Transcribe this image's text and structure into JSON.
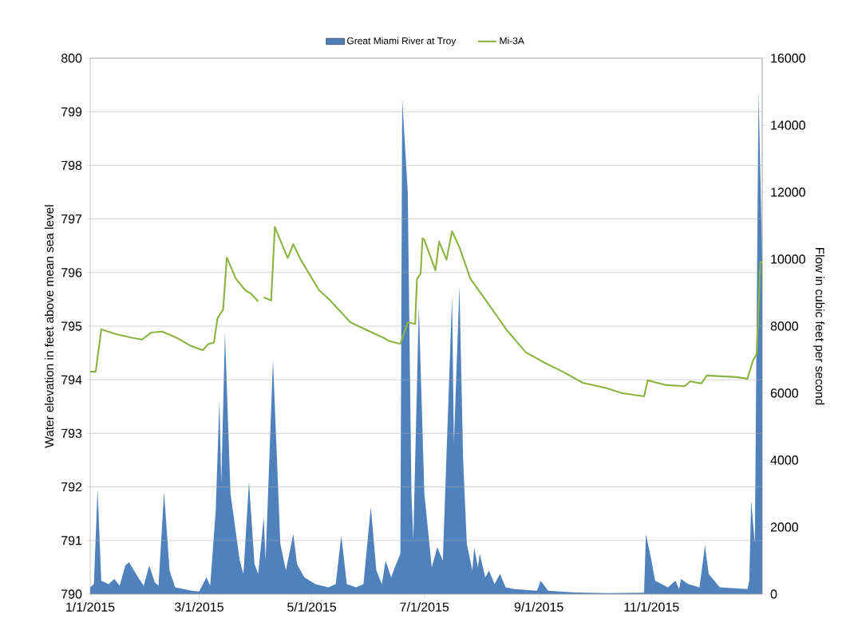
{
  "chart_data": {
    "type": "line",
    "xlim": [
      "2015-01-01",
      "2015-12-31"
    ],
    "xticks": [
      {
        "value": "2015-01-01",
        "label": "1/1/2015"
      },
      {
        "value": "2015-03-01",
        "label": "3/1/2015"
      },
      {
        "value": "2015-05-01",
        "label": "5/1/2015"
      },
      {
        "value": "2015-07-01",
        "label": "7/1/2015"
      },
      {
        "value": "2015-09-01",
        "label": "9/1/2015"
      },
      {
        "value": "2015-11-01",
        "label": "11/1/2015"
      }
    ],
    "ylim": [
      790,
      800
    ],
    "yticks": [
      790,
      791,
      792,
      793,
      794,
      795,
      796,
      797,
      798,
      799,
      800
    ],
    "y2lim": [
      0,
      16000
    ],
    "y2ticks": [
      0,
      2000,
      4000,
      6000,
      8000,
      10000,
      12000,
      14000,
      16000
    ],
    "ylabel": "Water elevation in feet above mean sea level",
    "y2label": "Flow in cubic feet per second",
    "grid": "y",
    "legend": "top",
    "series": [
      {
        "name": "Great Miami River at Troy",
        "type": "area",
        "axis": "y2",
        "color": "#4f81bd",
        "x": [
          "2015-01-01",
          "2015-01-03",
          "2015-01-05",
          "2015-01-07",
          "2015-01-11",
          "2015-01-14",
          "2015-01-17",
          "2015-01-20",
          "2015-01-22",
          "2015-01-27",
          "2015-01-30",
          "2015-02-02",
          "2015-02-05",
          "2015-02-07",
          "2015-02-10",
          "2015-02-13",
          "2015-02-16",
          "2015-02-25",
          "2015-03-01",
          "2015-03-05",
          "2015-03-07",
          "2015-03-10",
          "2015-03-12",
          "2015-03-13",
          "2015-03-15",
          "2015-03-18",
          "2015-03-23",
          "2015-03-25",
          "2015-03-28",
          "2015-03-31",
          "2015-04-02",
          "2015-04-05",
          "2015-04-06",
          "2015-04-10",
          "2015-04-14",
          "2015-04-17",
          "2015-04-21",
          "2015-04-23",
          "2015-04-27",
          "2015-05-03",
          "2015-05-10",
          "2015-05-14",
          "2015-05-17",
          "2015-05-20",
          "2015-05-25",
          "2015-05-29",
          "2015-06-02",
          "2015-06-05",
          "2015-06-08",
          "2015-06-10",
          "2015-06-13",
          "2015-06-15",
          "2015-06-18",
          "2015-06-19",
          "2015-06-22",
          "2015-06-24",
          "2015-06-25",
          "2015-06-28",
          "2015-07-01",
          "2015-07-05",
          "2015-07-08",
          "2015-07-11",
          "2015-07-16",
          "2015-07-17",
          "2015-07-20",
          "2015-07-22",
          "2015-07-24",
          "2015-07-27",
          "2015-07-28",
          "2015-07-30",
          "2015-07-31",
          "2015-08-03",
          "2015-08-05",
          "2015-08-08",
          "2015-08-11",
          "2015-08-14",
          "2015-08-19",
          "2015-08-31",
          "2015-09-02",
          "2015-09-06",
          "2015-09-21",
          "2015-10-08",
          "2015-10-28",
          "2015-10-29",
          "2015-11-01",
          "2015-11-03",
          "2015-11-10",
          "2015-11-14",
          "2015-11-16",
          "2015-11-17",
          "2015-11-21",
          "2015-11-27",
          "2015-11-30",
          "2015-12-02",
          "2015-12-08",
          "2015-12-23",
          "2015-12-24",
          "2015-12-25",
          "2015-12-27",
          "2015-12-29",
          "2015-12-31"
        ],
        "values": [
          200,
          300,
          3150,
          400,
          300,
          450,
          250,
          850,
          950,
          500,
          250,
          850,
          350,
          250,
          3050,
          700,
          200,
          100,
          80,
          500,
          250,
          2500,
          5800,
          3300,
          7800,
          3000,
          1000,
          600,
          3350,
          900,
          600,
          2300,
          1000,
          7000,
          1500,
          700,
          1800,
          900,
          500,
          300,
          200,
          300,
          1750,
          300,
          200,
          300,
          2600,
          700,
          300,
          1000,
          500,
          800,
          1200,
          14800,
          12000,
          3000,
          1600,
          8600,
          3000,
          800,
          1400,
          1000,
          8900,
          4500,
          9200,
          4000,
          1500,
          700,
          1400,
          800,
          1200,
          500,
          700,
          300,
          600,
          200,
          150,
          100,
          400,
          100,
          50,
          30,
          40,
          1800,
          1000,
          400,
          200,
          400,
          150,
          450,
          300,
          200,
          1450,
          600,
          200,
          150,
          400,
          2800,
          1500,
          15000,
          10000
        ]
      },
      {
        "name": "Mi-3A",
        "axis": "y",
        "color": "#8db443",
        "x": [
          "2015-01-01",
          "2015-01-04",
          "2015-01-07",
          "2015-01-15",
          "2015-01-24",
          "2015-01-29",
          "2015-02-03",
          "2015-02-09",
          "2015-02-17",
          "2015-02-24",
          "2015-03-03",
          "2015-03-06",
          "2015-03-09",
          "2015-03-11",
          "2015-03-14",
          "2015-03-16",
          "2015-03-21",
          "2015-03-26",
          "2015-03-29",
          "2015-04-02",
          "2015-04-03",
          "2015-04-05",
          "2015-04-09",
          "2015-04-11",
          "2015-04-18",
          "2015-04-21",
          "2015-04-25",
          "2015-05-05",
          "2015-05-11",
          "2015-05-22",
          "2015-05-30",
          "2015-06-09",
          "2015-06-12",
          "2015-06-18",
          "2015-06-22",
          "2015-06-26",
          "2015-06-27",
          "2015-06-29",
          "2015-06-30",
          "2015-07-01",
          "2015-07-07",
          "2015-07-09",
          "2015-07-13",
          "2015-07-16",
          "2015-07-20",
          "2015-07-26",
          "2015-08-04",
          "2015-08-15",
          "2015-08-25",
          "2015-09-04",
          "2015-09-14",
          "2015-09-25",
          "2015-10-07",
          "2015-10-16",
          "2015-10-28",
          "2015-10-30",
          "2015-11-09",
          "2015-11-19",
          "2015-11-22",
          "2015-11-28",
          "2015-12-01",
          "2015-12-17",
          "2015-12-23",
          "2015-12-26",
          "2015-12-28",
          "2015-12-30",
          "2015-12-31"
        ],
        "values": [
          794.15,
          794.15,
          794.94,
          794.85,
          794.78,
          794.75,
          794.88,
          794.9,
          794.78,
          794.64,
          794.55,
          794.67,
          794.69,
          795.15,
          795.31,
          796.28,
          795.88,
          795.67,
          795.61,
          795.46,
          null,
          795.54,
          795.48,
          796.85,
          796.27,
          796.53,
          796.24,
          795.67,
          795.48,
          795.07,
          794.94,
          794.78,
          794.72,
          794.67,
          795.07,
          795.04,
          795.88,
          795.98,
          796.64,
          796.61,
          796.04,
          796.58,
          796.24,
          796.77,
          796.47,
          795.88,
          795.45,
          794.91,
          794.51,
          794.32,
          794.15,
          793.94,
          793.85,
          793.75,
          793.69,
          793.99,
          793.9,
          793.88,
          793.97,
          793.93,
          794.08,
          794.05,
          794.02,
          794.36,
          794.48,
          796.2,
          796.2
        ]
      }
    ]
  }
}
